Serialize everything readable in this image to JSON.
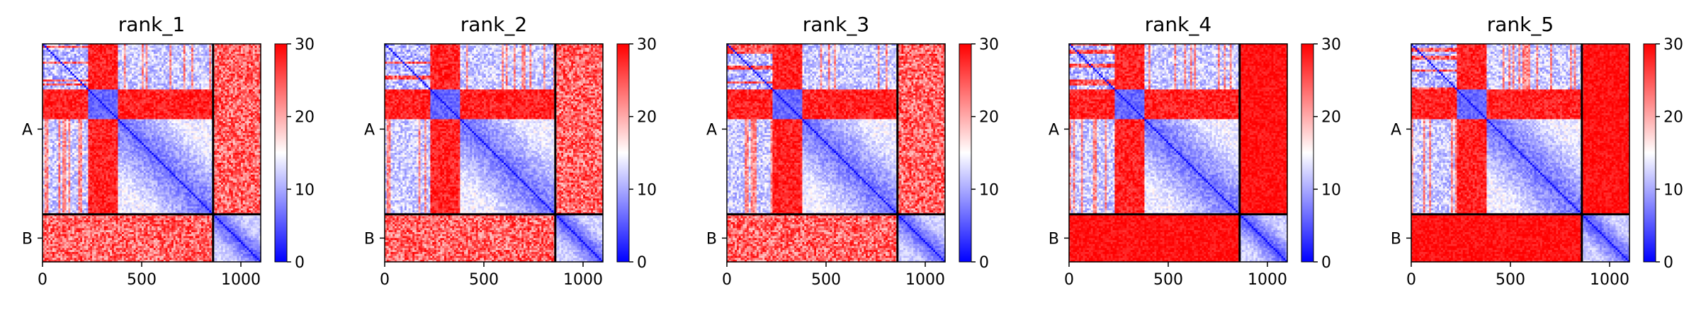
{
  "chart_data": [
    {
      "type": "heatmap",
      "title": "rank_1",
      "x_ticks": [
        0,
        500,
        1000
      ],
      "xlim": [
        0,
        1100
      ],
      "chains": [
        {
          "label": "A",
          "start": 0,
          "end": 860
        },
        {
          "label": "B",
          "start": 860,
          "end": 1100
        }
      ],
      "colorbar": {
        "min": 0,
        "max": 30,
        "ticks": [
          0,
          10,
          20,
          30
        ],
        "colors": [
          "#0000ff",
          "#ffffff",
          "#ff0000"
        ]
      },
      "inter_chain_level": "high"
    },
    {
      "type": "heatmap",
      "title": "rank_2",
      "x_ticks": [
        0,
        500,
        1000
      ],
      "xlim": [
        0,
        1100
      ],
      "chains": [
        {
          "label": "A",
          "start": 0,
          "end": 860
        },
        {
          "label": "B",
          "start": 860,
          "end": 1100
        }
      ],
      "colorbar": {
        "min": 0,
        "max": 30,
        "ticks": [
          0,
          10,
          20,
          30
        ],
        "colors": [
          "#0000ff",
          "#ffffff",
          "#ff0000"
        ]
      },
      "inter_chain_level": "high"
    },
    {
      "type": "heatmap",
      "title": "rank_3",
      "x_ticks": [
        0,
        500,
        1000
      ],
      "xlim": [
        0,
        1100
      ],
      "chains": [
        {
          "label": "A",
          "start": 0,
          "end": 860
        },
        {
          "label": "B",
          "start": 860,
          "end": 1100
        }
      ],
      "colorbar": {
        "min": 0,
        "max": 30,
        "ticks": [
          0,
          10,
          20,
          30
        ],
        "colors": [
          "#0000ff",
          "#ffffff",
          "#ff0000"
        ]
      },
      "inter_chain_level": "high"
    },
    {
      "type": "heatmap",
      "title": "rank_4",
      "x_ticks": [
        0,
        500,
        1000
      ],
      "xlim": [
        0,
        1100
      ],
      "chains": [
        {
          "label": "A",
          "start": 0,
          "end": 860
        },
        {
          "label": "B",
          "start": 860,
          "end": 1100
        }
      ],
      "colorbar": {
        "min": 0,
        "max": 30,
        "ticks": [
          0,
          10,
          20,
          30
        ],
        "colors": [
          "#0000ff",
          "#ffffff",
          "#ff0000"
        ]
      },
      "inter_chain_level": "max"
    },
    {
      "type": "heatmap",
      "title": "rank_5",
      "x_ticks": [
        0,
        500,
        1000
      ],
      "xlim": [
        0,
        1100
      ],
      "chains": [
        {
          "label": "A",
          "start": 0,
          "end": 860
        },
        {
          "label": "B",
          "start": 860,
          "end": 1100
        }
      ],
      "colorbar": {
        "min": 0,
        "max": 30,
        "ticks": [
          0,
          10,
          20,
          30
        ],
        "colors": [
          "#0000ff",
          "#ffffff",
          "#ff0000"
        ]
      },
      "inter_chain_level": "max"
    }
  ]
}
